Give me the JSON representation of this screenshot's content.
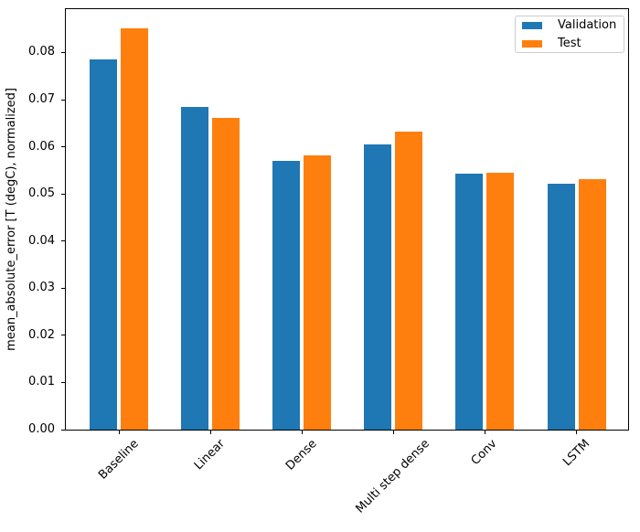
{
  "chart_data": {
    "type": "bar",
    "title": "",
    "xlabel": "",
    "ylabel": "mean_absolute_error [T (degC), normalized]",
    "categories": [
      "Baseline",
      "Linear",
      "Dense",
      "Multi step dense",
      "Conv",
      "LSTM"
    ],
    "series": [
      {
        "name": "Validation",
        "color": "#1f77b4",
        "values": [
          0.0785,
          0.0685,
          0.0571,
          0.0605,
          0.0543,
          0.0522
        ]
      },
      {
        "name": "Test",
        "color": "#ff7f0e",
        "values": [
          0.0851,
          0.0661,
          0.0581,
          0.0632,
          0.0545,
          0.0532
        ]
      }
    ],
    "ylim": [
      0,
      0.0892
    ],
    "yticks": [
      0.0,
      0.01,
      0.02,
      0.03,
      0.04,
      0.05,
      0.06,
      0.07,
      0.08
    ],
    "ytick_labels": [
      "0.00",
      "0.01",
      "0.02",
      "0.03",
      "0.04",
      "0.05",
      "0.06",
      "0.07",
      "0.08"
    ],
    "xtick_rotation_deg": 45,
    "grid": false,
    "legend": {
      "position": "upper right",
      "entries": [
        "Validation",
        "Test"
      ]
    }
  }
}
